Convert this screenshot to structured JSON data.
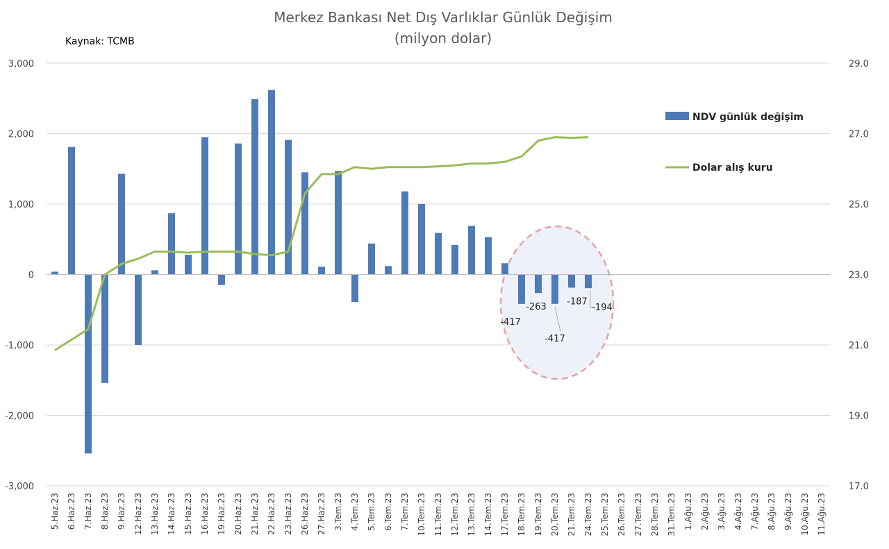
{
  "chart_data": {
    "type": "bar",
    "title": "Merkez Bankası Net Dış Varlıklar Günlük Değişim",
    "subtitle": "(milyon dolar)",
    "source": "Kaynak: TCMB",
    "categories": [
      "5.Haz.23",
      "6.Haz.23",
      "7.Haz.23",
      "8.Haz.23",
      "9.Haz.23",
      "12.Haz.23",
      "13.Haz.23",
      "14.Haz.23",
      "15.Haz.23",
      "16.Haz.23",
      "19.Haz.23",
      "20.Haz.23",
      "21.Haz.23",
      "22.Haz.23",
      "23.Haz.23",
      "26.Haz.23",
      "27.Haz.23",
      "3.Tem.23",
      "4.Tem.23",
      "5.Tem.23",
      "6.Tem.23",
      "7.Tem.23",
      "10.Tem.23",
      "11.Tem.23",
      "12.Tem.23",
      "13.Tem.23",
      "14.Tem.23",
      "17.Tem.23",
      "18.Tem.23",
      "19.Tem.23",
      "20.Tem.23",
      "21.Tem.23",
      "24.Tem.23",
      "25.Tem.23",
      "26.Tem.23",
      "27.Tem.23",
      "28.Tem.23",
      "31.Tem.23",
      "1.Ağu.23",
      "2.Ağu.23",
      "3.Ağu.23",
      "4.Ağu.23",
      "7.Ağu.23",
      "8.Ağu.23",
      "9.Ağu.23",
      "10.Ağu.23",
      "11.Ağu.23"
    ],
    "series": [
      {
        "name": "NDV günlük değişim",
        "type": "bar",
        "axis": "left",
        "color": "#4f7ab8",
        "values": [
          40,
          1810,
          -2540,
          -1540,
          1430,
          -1000,
          60,
          870,
          280,
          1950,
          -150,
          1860,
          2490,
          2620,
          1910,
          1450,
          110,
          1470,
          -390,
          440,
          120,
          1180,
          1000,
          590,
          420,
          690,
          530,
          160,
          -417,
          -263,
          -417,
          -187,
          -194,
          null,
          null,
          null,
          null,
          null,
          null,
          null,
          null,
          null,
          null,
          null,
          null,
          null,
          null
        ]
      },
      {
        "name": "Dolar alış kuru",
        "type": "line",
        "axis": "right",
        "color": "#9bbb59",
        "values": [
          20.85,
          21.15,
          21.45,
          23.0,
          23.3,
          23.45,
          23.65,
          23.65,
          23.62,
          23.65,
          23.65,
          23.65,
          23.58,
          23.55,
          23.65,
          25.3,
          25.85,
          25.85,
          26.05,
          26.0,
          26.05,
          26.05,
          26.05,
          26.07,
          26.1,
          26.15,
          26.15,
          26.2,
          26.35,
          26.8,
          26.9,
          26.88,
          26.9,
          null,
          null,
          null,
          null,
          null,
          null,
          null,
          null,
          null,
          null,
          null,
          null,
          null,
          null
        ]
      }
    ],
    "y_left": {
      "min": -3000,
      "max": 3000,
      "ticks": [
        "3,000",
        "2,000",
        "1,000",
        "0",
        "-1,000",
        "-2,000",
        "-3,000"
      ],
      "tick_values": [
        3000,
        2000,
        1000,
        0,
        -1000,
        -2000,
        -3000
      ]
    },
    "y_right": {
      "min": 17.0,
      "max": 29.0,
      "ticks": [
        "29.0",
        "27.0",
        "25.0",
        "23.0",
        "21.0",
        "19.0",
        "17.0"
      ],
      "tick_values": [
        29,
        27,
        25,
        23,
        21,
        19,
        17
      ]
    },
    "data_labels": [
      {
        "index": 28,
        "text": "-417"
      },
      {
        "index": 29,
        "text": "-263"
      },
      {
        "index": 30,
        "text": "-417"
      },
      {
        "index": 31,
        "text": "-187"
      },
      {
        "index": 32,
        "text": "-194"
      }
    ],
    "grid": true,
    "legend": {
      "placement": "right",
      "items": [
        {
          "label": "NDV günlük değişim",
          "kind": "bar",
          "color": "#4f7ab8"
        },
        {
          "label": "Dolar alış kuru",
          "kind": "line",
          "color": "#9bbb59"
        }
      ]
    },
    "highlight": {
      "shape": "ellipse",
      "from_index": 28,
      "to_index": 32,
      "stroke": "#e8a0a0",
      "fill": "#eef1f9"
    }
  }
}
